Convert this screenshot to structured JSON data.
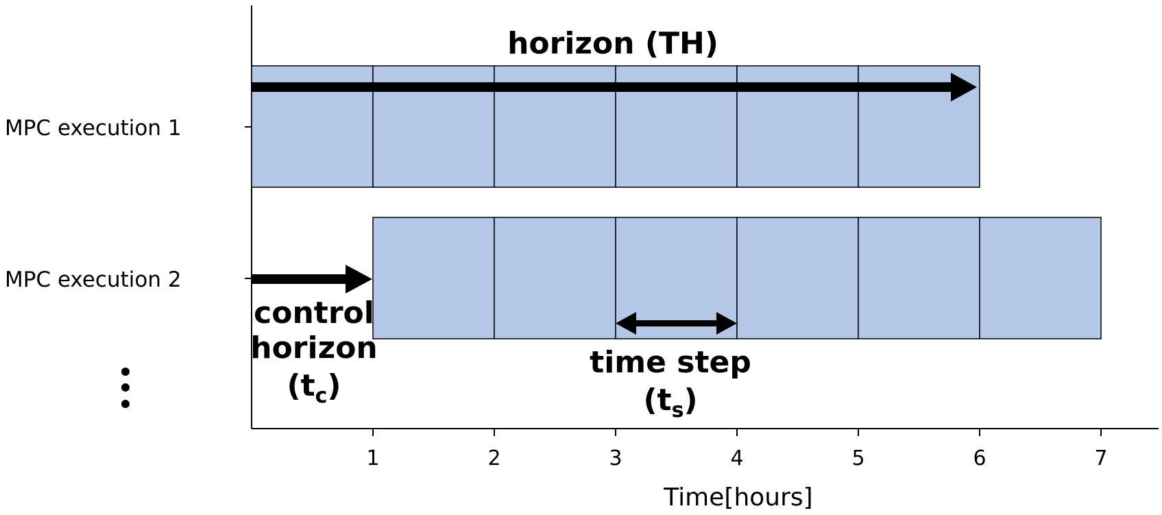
{
  "rows": [
    {
      "label": "MPC execution 1",
      "start": 0,
      "end": 6
    },
    {
      "label": "MPC execution 2",
      "start": 1,
      "end": 7
    }
  ],
  "ellipsis": "⋮",
  "x_axis": {
    "title": "Time[hours]",
    "ticks": [
      "1",
      "2",
      "3",
      "4",
      "5",
      "6",
      "7"
    ],
    "range": [
      0,
      7.5
    ]
  },
  "annotations": {
    "horizon": "horizon (TH)",
    "control_horizon_line1": "control",
    "control_horizon_line2": "horizon",
    "control_horizon_sym": "(t",
    "control_horizon_sub": "c",
    "control_horizon_close": ")",
    "time_step_line1": "time step",
    "time_step_sym": "(t",
    "time_step_sub": "s",
    "time_step_close": ")"
  },
  "colors": {
    "cell_fill": "#b4c7e7",
    "arrow": "#000000"
  }
}
